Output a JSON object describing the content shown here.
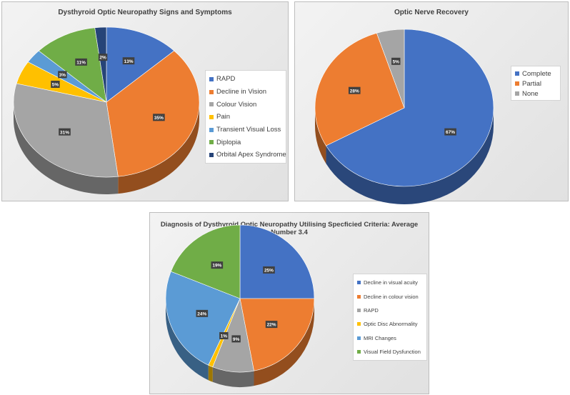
{
  "chart_data": [
    {
      "type": "pie",
      "title": "Dysthyroid Optic Neuropathy Signs and Symptoms",
      "categories": [
        "RAPD",
        "Decline in Vision",
        "Colour Vision",
        "Pain",
        "Transient Visual Loss",
        "Diplopia",
        "Orbital Apex Syndrome"
      ],
      "values": [
        13,
        35,
        31,
        5,
        3,
        11,
        2
      ],
      "labels": [
        "13%",
        "35%",
        "31%",
        "5%",
        "3%",
        "11%",
        "2%"
      ],
      "colors": [
        "#4472C4",
        "#ED7D31",
        "#A5A5A5",
        "#FFC000",
        "#5B9BD5",
        "#70AD47",
        "#264478"
      ],
      "legend": "right"
    },
    {
      "type": "pie",
      "title": "Optic Nerve Recovery",
      "categories": [
        "Complete",
        "Partial",
        "None"
      ],
      "values": [
        67,
        28,
        5
      ],
      "labels": [
        "67%",
        "28%",
        "5%"
      ],
      "colors": [
        "#4472C4",
        "#ED7D31",
        "#A5A5A5"
      ],
      "legend": "right"
    },
    {
      "type": "pie",
      "title": "Diagnosis of Dysthyroid Optic Neuropathy Utilising Specficied Criteria: Average Number 3.4",
      "categories": [
        "Decline in visual acuity",
        "Decline in colour vision",
        "RAPD",
        "Optic Disc Abnormality",
        "MRI Changes",
        "Visual Field Dysfunction"
      ],
      "values": [
        25,
        22,
        9,
        1,
        24,
        19
      ],
      "labels": [
        "25%",
        "22%",
        "9%",
        "1%",
        "24%",
        "19%"
      ],
      "colors": [
        "#4472C4",
        "#ED7D31",
        "#A5A5A5",
        "#FFC000",
        "#5B9BD5",
        "#70AD47"
      ],
      "legend": "right"
    }
  ]
}
